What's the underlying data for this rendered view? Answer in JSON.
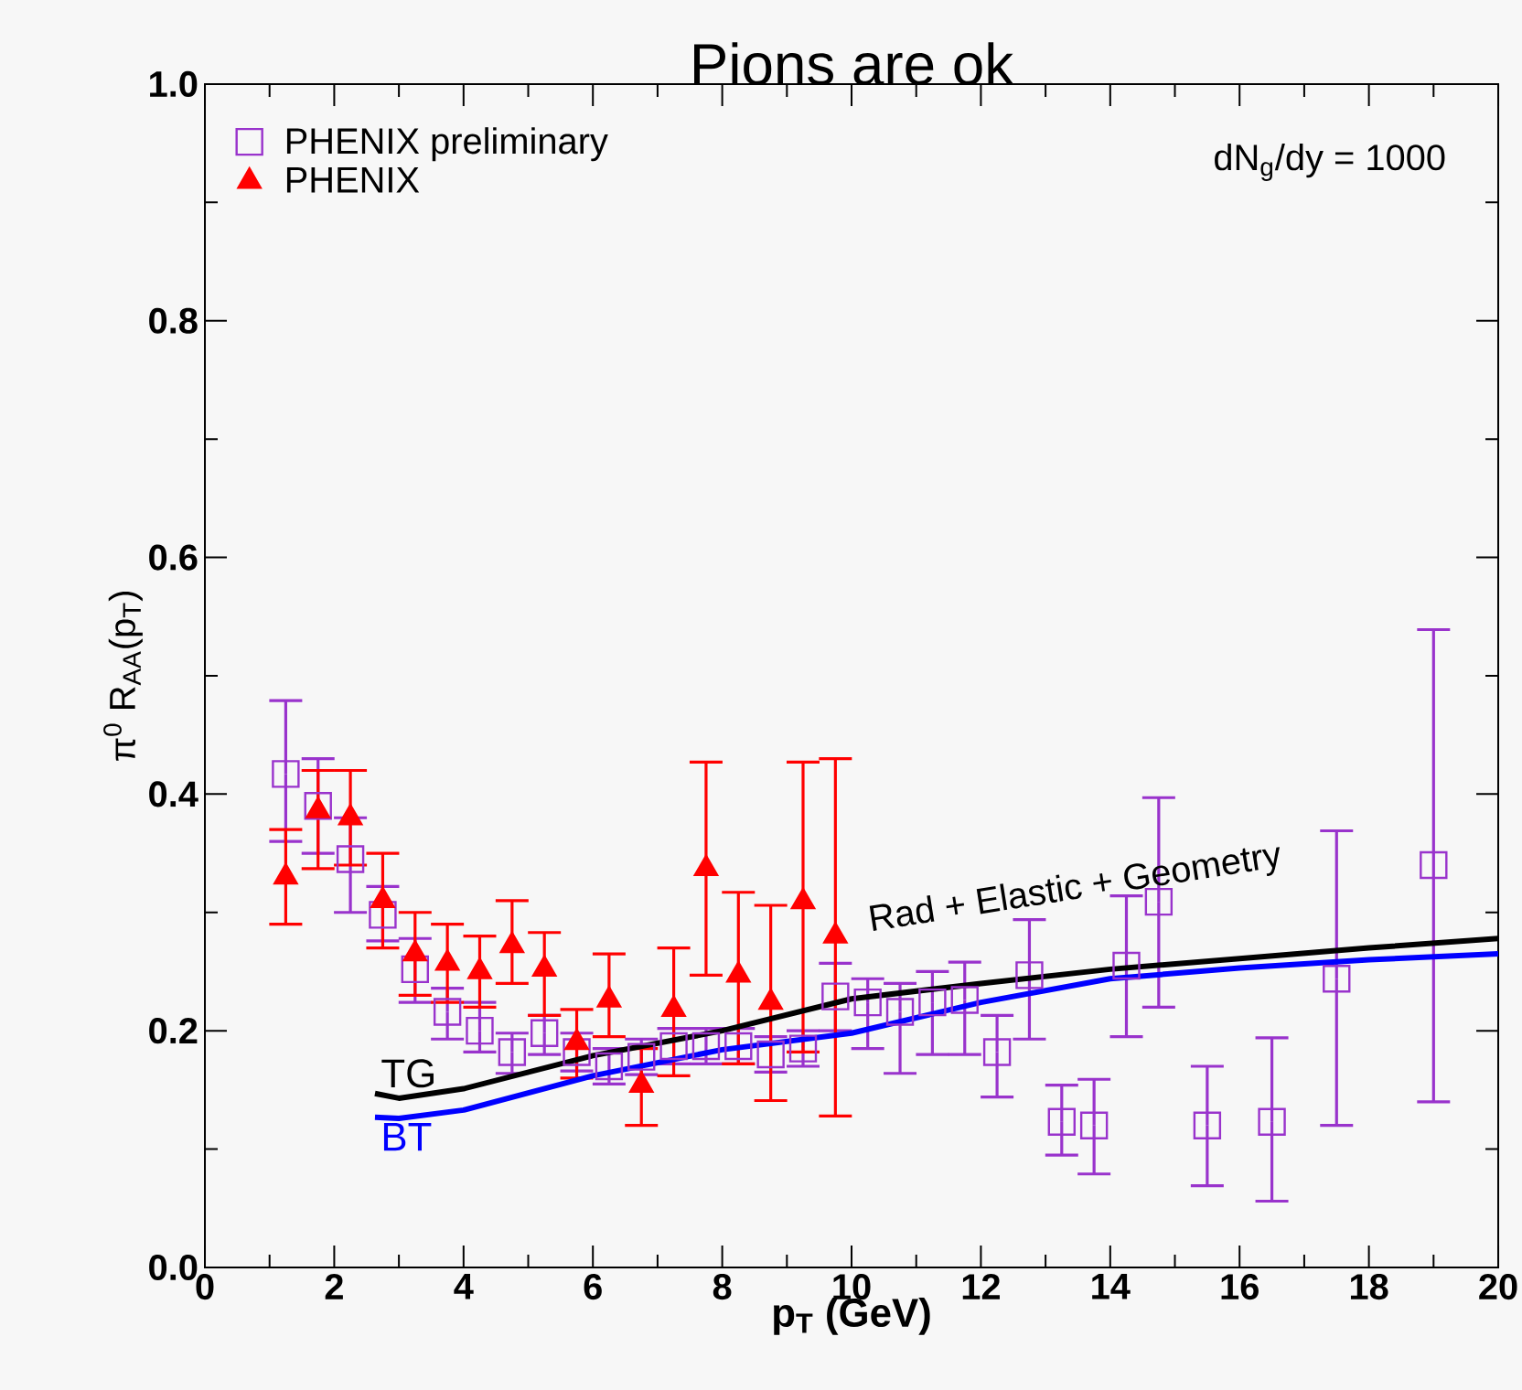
{
  "chart_data": {
    "type": "scatter",
    "title": "Pions are ok",
    "xlabel": "p$_{T}$ (GeV)",
    "ylabel": "π$^{0}$ R$_{AA}$(p$_{T}$)",
    "annotations": [
      "dN$_{g}$/dy = 1000",
      "Rad + Elastic + Geometry"
    ],
    "xlim": [
      0,
      20
    ],
    "ylim": [
      0,
      1
    ],
    "xticks": [
      0,
      2,
      4,
      6,
      8,
      10,
      12,
      14,
      16,
      18,
      20
    ],
    "yticks": [
      {
        "value": 0,
        "label": "0.0"
      },
      {
        "value": 0.2,
        "label": "0.2"
      },
      {
        "value": 0.4,
        "label": "0.4"
      },
      {
        "value": 0.6,
        "label": "0.6"
      },
      {
        "value": 0.8,
        "label": "0.8"
      },
      {
        "value": 1,
        "label": "1.0"
      }
    ],
    "legend": "top left",
    "grid": false,
    "series": [
      {
        "name": "PHENIX preliminary",
        "marker": "square",
        "color": "#9933cc",
        "x": [
          1.25,
          1.75,
          2.25,
          2.75,
          3.25,
          3.75,
          4.25,
          4.75,
          5.25,
          5.75,
          6.25,
          6.75,
          7.25,
          7.75,
          8.25,
          8.75,
          9.25,
          9.75,
          10.25,
          10.75,
          11.25,
          11.75,
          12.25,
          12.75,
          13.25,
          13.75,
          14.25,
          14.75,
          15.5,
          16.5,
          17.5,
          19.0
        ],
        "values": [
          0.417,
          0.39,
          0.345,
          0.298,
          0.252,
          0.216,
          0.2,
          0.182,
          0.198,
          0.182,
          0.17,
          0.178,
          0.187,
          0.187,
          0.187,
          0.18,
          0.185,
          0.229,
          0.224,
          0.216,
          0.224,
          0.226,
          0.182,
          0.247,
          0.123,
          0.12,
          0.255,
          0.309,
          0.12,
          0.123,
          0.244,
          0.34
        ],
        "errors": [
          [
            0.36,
            0.479
          ],
          [
            0.35,
            0.43
          ],
          [
            0.3,
            0.38
          ],
          [
            0.276,
            0.322
          ],
          [
            0.224,
            0.278
          ],
          [
            0.193,
            0.236
          ],
          [
            0.182,
            0.224
          ],
          [
            0.164,
            0.198
          ],
          [
            0.18,
            0.213
          ],
          [
            0.166,
            0.198
          ],
          [
            0.155,
            0.185
          ],
          [
            0.163,
            0.193
          ],
          [
            0.172,
            0.202
          ],
          [
            0.172,
            0.202
          ],
          [
            0.172,
            0.202
          ],
          [
            0.165,
            0.195
          ],
          [
            0.17,
            0.2
          ],
          [
            0.2,
            0.257
          ],
          [
            0.185,
            0.244
          ],
          [
            0.164,
            0.24
          ],
          [
            0.18,
            0.25
          ],
          [
            0.18,
            0.258
          ],
          [
            0.144,
            0.213
          ],
          [
            0.193,
            0.294
          ],
          [
            0.095,
            0.154
          ],
          [
            0.079,
            0.159
          ],
          [
            0.195,
            0.314
          ],
          [
            0.22,
            0.397
          ],
          [
            0.069,
            0.17
          ],
          [
            0.056,
            0.194
          ],
          [
            0.12,
            0.369
          ],
          [
            0.14,
            0.539
          ]
        ]
      },
      {
        "name": "PHENIX",
        "marker": "triangle",
        "color": "#ff0000",
        "x": [
          1.25,
          1.75,
          2.25,
          2.75,
          3.25,
          3.75,
          4.25,
          4.75,
          5.25,
          5.75,
          6.25,
          6.75,
          7.25,
          7.75,
          8.25,
          8.75,
          9.25,
          9.75
        ],
        "values": [
          0.33,
          0.386,
          0.38,
          0.31,
          0.265,
          0.257,
          0.25,
          0.272,
          0.252,
          0.19,
          0.226,
          0.154,
          0.218,
          0.337,
          0.247,
          0.224,
          0.309,
          0.28
        ],
        "errors": [
          [
            0.29,
            0.37
          ],
          [
            0.337,
            0.42
          ],
          [
            0.34,
            0.42
          ],
          [
            0.27,
            0.35
          ],
          [
            0.23,
            0.3
          ],
          [
            0.224,
            0.29
          ],
          [
            0.22,
            0.28
          ],
          [
            0.24,
            0.31
          ],
          [
            0.213,
            0.283
          ],
          [
            0.16,
            0.218
          ],
          [
            0.195,
            0.265
          ],
          [
            0.12,
            0.185
          ],
          [
            0.162,
            0.27
          ],
          [
            0.247,
            0.427
          ],
          [
            0.172,
            0.317
          ],
          [
            0.141,
            0.306
          ],
          [
            0.182,
            0.427
          ],
          [
            0.128,
            0.43
          ]
        ]
      },
      {
        "name": "TG",
        "type": "line",
        "marker": "none",
        "color": "#000000",
        "x": [
          2.63,
          3,
          4,
          6,
          8,
          10,
          12,
          14,
          16,
          18,
          20
        ],
        "values": [
          0.147,
          0.143,
          0.151,
          0.179,
          0.2,
          0.227,
          0.24,
          0.252,
          0.261,
          0.27,
          0.278
        ]
      },
      {
        "name": "BT",
        "type": "line",
        "marker": "none",
        "color": "#0000ff",
        "x": [
          2.63,
          3,
          4,
          6,
          8,
          10,
          12,
          14,
          16,
          18,
          20
        ],
        "values": [
          0.127,
          0.126,
          0.133,
          0.162,
          0.184,
          0.198,
          0.224,
          0.244,
          0.253,
          0.26,
          0.265
        ]
      }
    ]
  }
}
